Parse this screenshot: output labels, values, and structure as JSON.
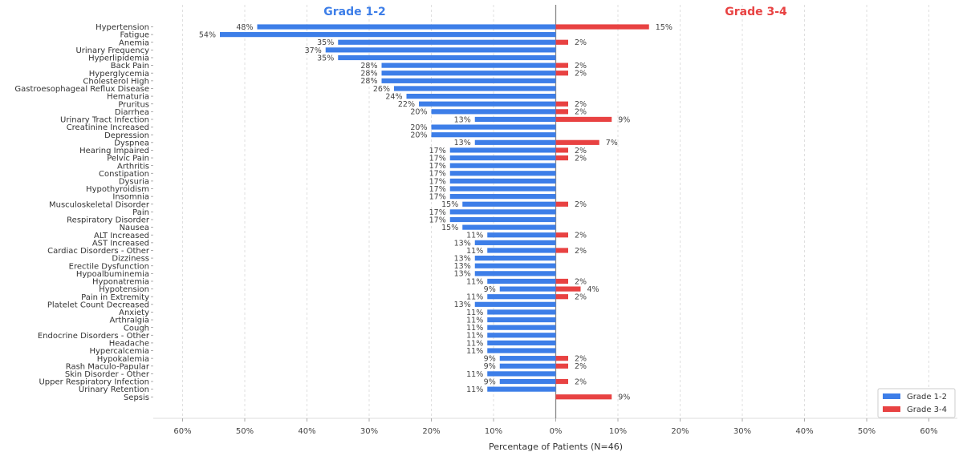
{
  "chart_data": {
    "type": "bar",
    "orientation": "horizontal-diverging",
    "categories": [
      "Hypertension",
      "Fatigue",
      "Anemia",
      "Urinary Frequency",
      "Hyperlipidemia",
      "Back Pain",
      "Hyperglycemia",
      "Cholesterol High",
      "Gastroesophageal Reflux Disease",
      "Hematuria",
      "Pruritus",
      "Diarrhea",
      "Urinary Tract Infection",
      "Creatinine Increased",
      "Depression",
      "Dyspnea",
      "Hearing Impaired",
      "Pelvic Pain",
      "Arthritis",
      "Constipation",
      "Dysuria",
      "Hypothyroidism",
      "Insomnia",
      "Musculoskeletal Disorder",
      "Pain",
      "Respiratory Disorder",
      "Nausea",
      "ALT Increased",
      "AST Increased",
      "Cardiac Disorders - Other",
      "Dizziness",
      "Erectile Dysfunction",
      "Hypoalbuminemia",
      "Hyponatremia",
      "Hypotension",
      "Pain in Extremity",
      "Platelet Count Decreased",
      "Anxiety",
      "Arthralgia",
      "Cough",
      "Endocrine Disorders - Other",
      "Headache",
      "Hypercalcemia",
      "Hypokalemia",
      "Rash Maculo-Papular",
      "Skin Disorder - Other",
      "Upper Respiratory Infection",
      "Urinary Retention",
      "Sepsis"
    ],
    "series": [
      {
        "name": "Grade 1-2",
        "color": "#3d7ee8",
        "side": "left",
        "values": [
          48,
          54,
          35,
          37,
          35,
          28,
          28,
          28,
          26,
          24,
          22,
          20,
          13,
          20,
          20,
          13,
          17,
          17,
          17,
          17,
          17,
          17,
          17,
          15,
          17,
          17,
          15,
          11,
          13,
          11,
          13,
          13,
          13,
          11,
          9,
          11,
          13,
          11,
          11,
          11,
          11,
          11,
          11,
          9,
          9,
          11,
          9,
          11,
          0
        ]
      },
      {
        "name": "Grade 3-4",
        "color": "#e84242",
        "side": "right",
        "values": [
          15,
          0,
          2,
          0,
          0,
          2,
          2,
          0,
          0,
          0,
          2,
          2,
          9,
          0,
          0,
          7,
          2,
          2,
          0,
          0,
          0,
          0,
          0,
          2,
          0,
          0,
          0,
          2,
          0,
          2,
          0,
          0,
          0,
          2,
          4,
          2,
          0,
          0,
          0,
          0,
          0,
          0,
          0,
          2,
          2,
          0,
          2,
          0,
          9
        ]
      }
    ],
    "xlim": [
      -60,
      60
    ],
    "xticks": [
      "60%",
      "50%",
      "40%",
      "30%",
      "20%",
      "10%",
      "0%",
      "10%",
      "20%",
      "30%",
      "40%",
      "50%",
      "60%"
    ],
    "xlabel": "Percentage of Patients (N=46)",
    "headers": {
      "left": "Grade 1-2",
      "right": "Grade 3-4"
    },
    "legend": {
      "position": "bottom-right",
      "entries": [
        "Grade 1-2",
        "Grade 3-4"
      ]
    },
    "grid": "vertical-dashed"
  }
}
